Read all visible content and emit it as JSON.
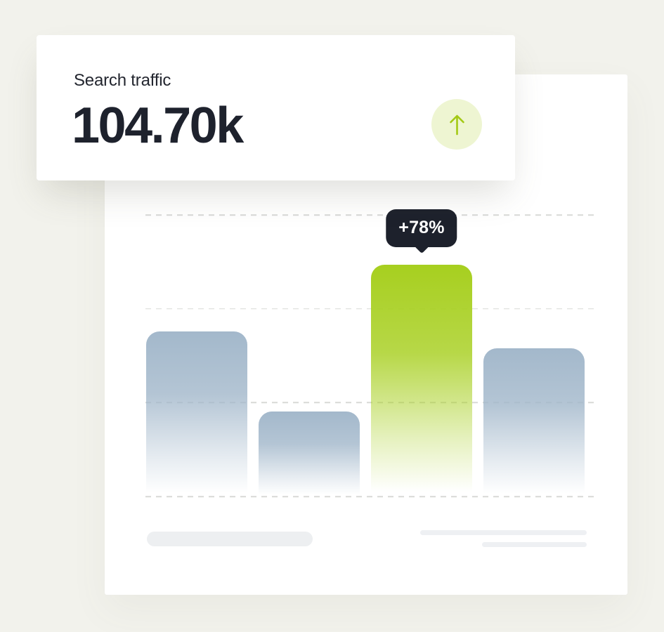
{
  "page": {
    "background": "#f2f2ec"
  },
  "stat_card": {
    "label": "Search traffic",
    "value": "104.70k",
    "trend_button": {
      "icon": "arrow-up-icon",
      "bg": "#eef5d2",
      "arrow_color": "#a3c915"
    }
  },
  "chart_card": {
    "tooltip": {
      "label": "+78%",
      "bg": "#1d212c",
      "text_color": "#ffffff"
    }
  },
  "chart_data": {
    "type": "bar",
    "title": "Search traffic",
    "headline_value": "104.70k",
    "categories": [
      "",
      "",
      "",
      ""
    ],
    "values_pct_of_plot_height": [
      58.6,
      30.2,
      82.3,
      52.6
    ],
    "highlight_index": 2,
    "annotations": [
      {
        "bar_index": 2,
        "label": "+78%"
      }
    ],
    "bar_color_top_default": "#a3b8cb",
    "bar_color_top_highlight": "#a7cf1f",
    "bar_fade": "fades to transparent at baseline",
    "grid": {
      "style": "dashed",
      "orientation": "horizontal",
      "count": 4,
      "color": "#d8d9d6"
    },
    "axis_tick_labels": "none",
    "legend": "none",
    "xlabel": "",
    "ylabel": ""
  }
}
